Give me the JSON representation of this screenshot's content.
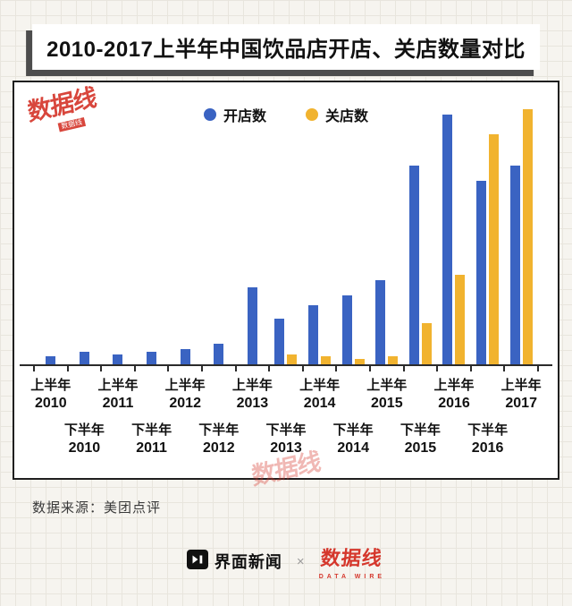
{
  "title": "2010-2017上半年中国饮品店开店、关店数量对比",
  "source": "数据来源：美团点评",
  "watermark": {
    "text": "数据线"
  },
  "footer": {
    "jiemian_label": "界面新闻",
    "separator": "×",
    "datawire_label": "数据线",
    "datawire_sub": "DATA WIRE"
  },
  "colors": {
    "open": "#3a63c2",
    "close": "#f1b32f",
    "red": "#d5372c",
    "ink": "#1f1f1f"
  },
  "chart_data": {
    "type": "bar",
    "title": "2010-2017上半年中国饮品店开店、关店数量对比",
    "categories": [
      {
        "half": "上半年",
        "year": "2010"
      },
      {
        "half": "下半年",
        "year": "2010"
      },
      {
        "half": "上半年",
        "year": "2011"
      },
      {
        "half": "下半年",
        "year": "2011"
      },
      {
        "half": "上半年",
        "year": "2012"
      },
      {
        "half": "下半年",
        "year": "2012"
      },
      {
        "half": "上半年",
        "year": "2013"
      },
      {
        "half": "下半年",
        "year": "2013"
      },
      {
        "half": "上半年",
        "year": "2014"
      },
      {
        "half": "下半年",
        "year": "2014"
      },
      {
        "half": "上半年",
        "year": "2015"
      },
      {
        "half": "下半年",
        "year": "2015"
      },
      {
        "half": "上半年",
        "year": "2016"
      },
      {
        "half": "下半年",
        "year": "2016"
      },
      {
        "half": "上半年",
        "year": "2017"
      }
    ],
    "series": [
      {
        "name": "开店数",
        "color": "#3a63c2",
        "values": [
          3,
          5,
          4,
          5,
          6,
          8,
          30,
          18,
          23,
          27,
          33,
          78,
          98,
          72,
          78
        ]
      },
      {
        "name": "关店数",
        "color": "#f1b32f",
        "values": [
          0,
          0,
          0,
          0,
          0,
          0,
          0,
          4,
          3,
          2,
          3,
          16,
          35,
          90,
          100
        ]
      }
    ],
    "ylim": [
      0,
      100
    ],
    "y_axis_visible": false,
    "grid": false,
    "legend_position": "top-center",
    "units": "relative scale (no y-axis tick labels shown in figure)"
  }
}
